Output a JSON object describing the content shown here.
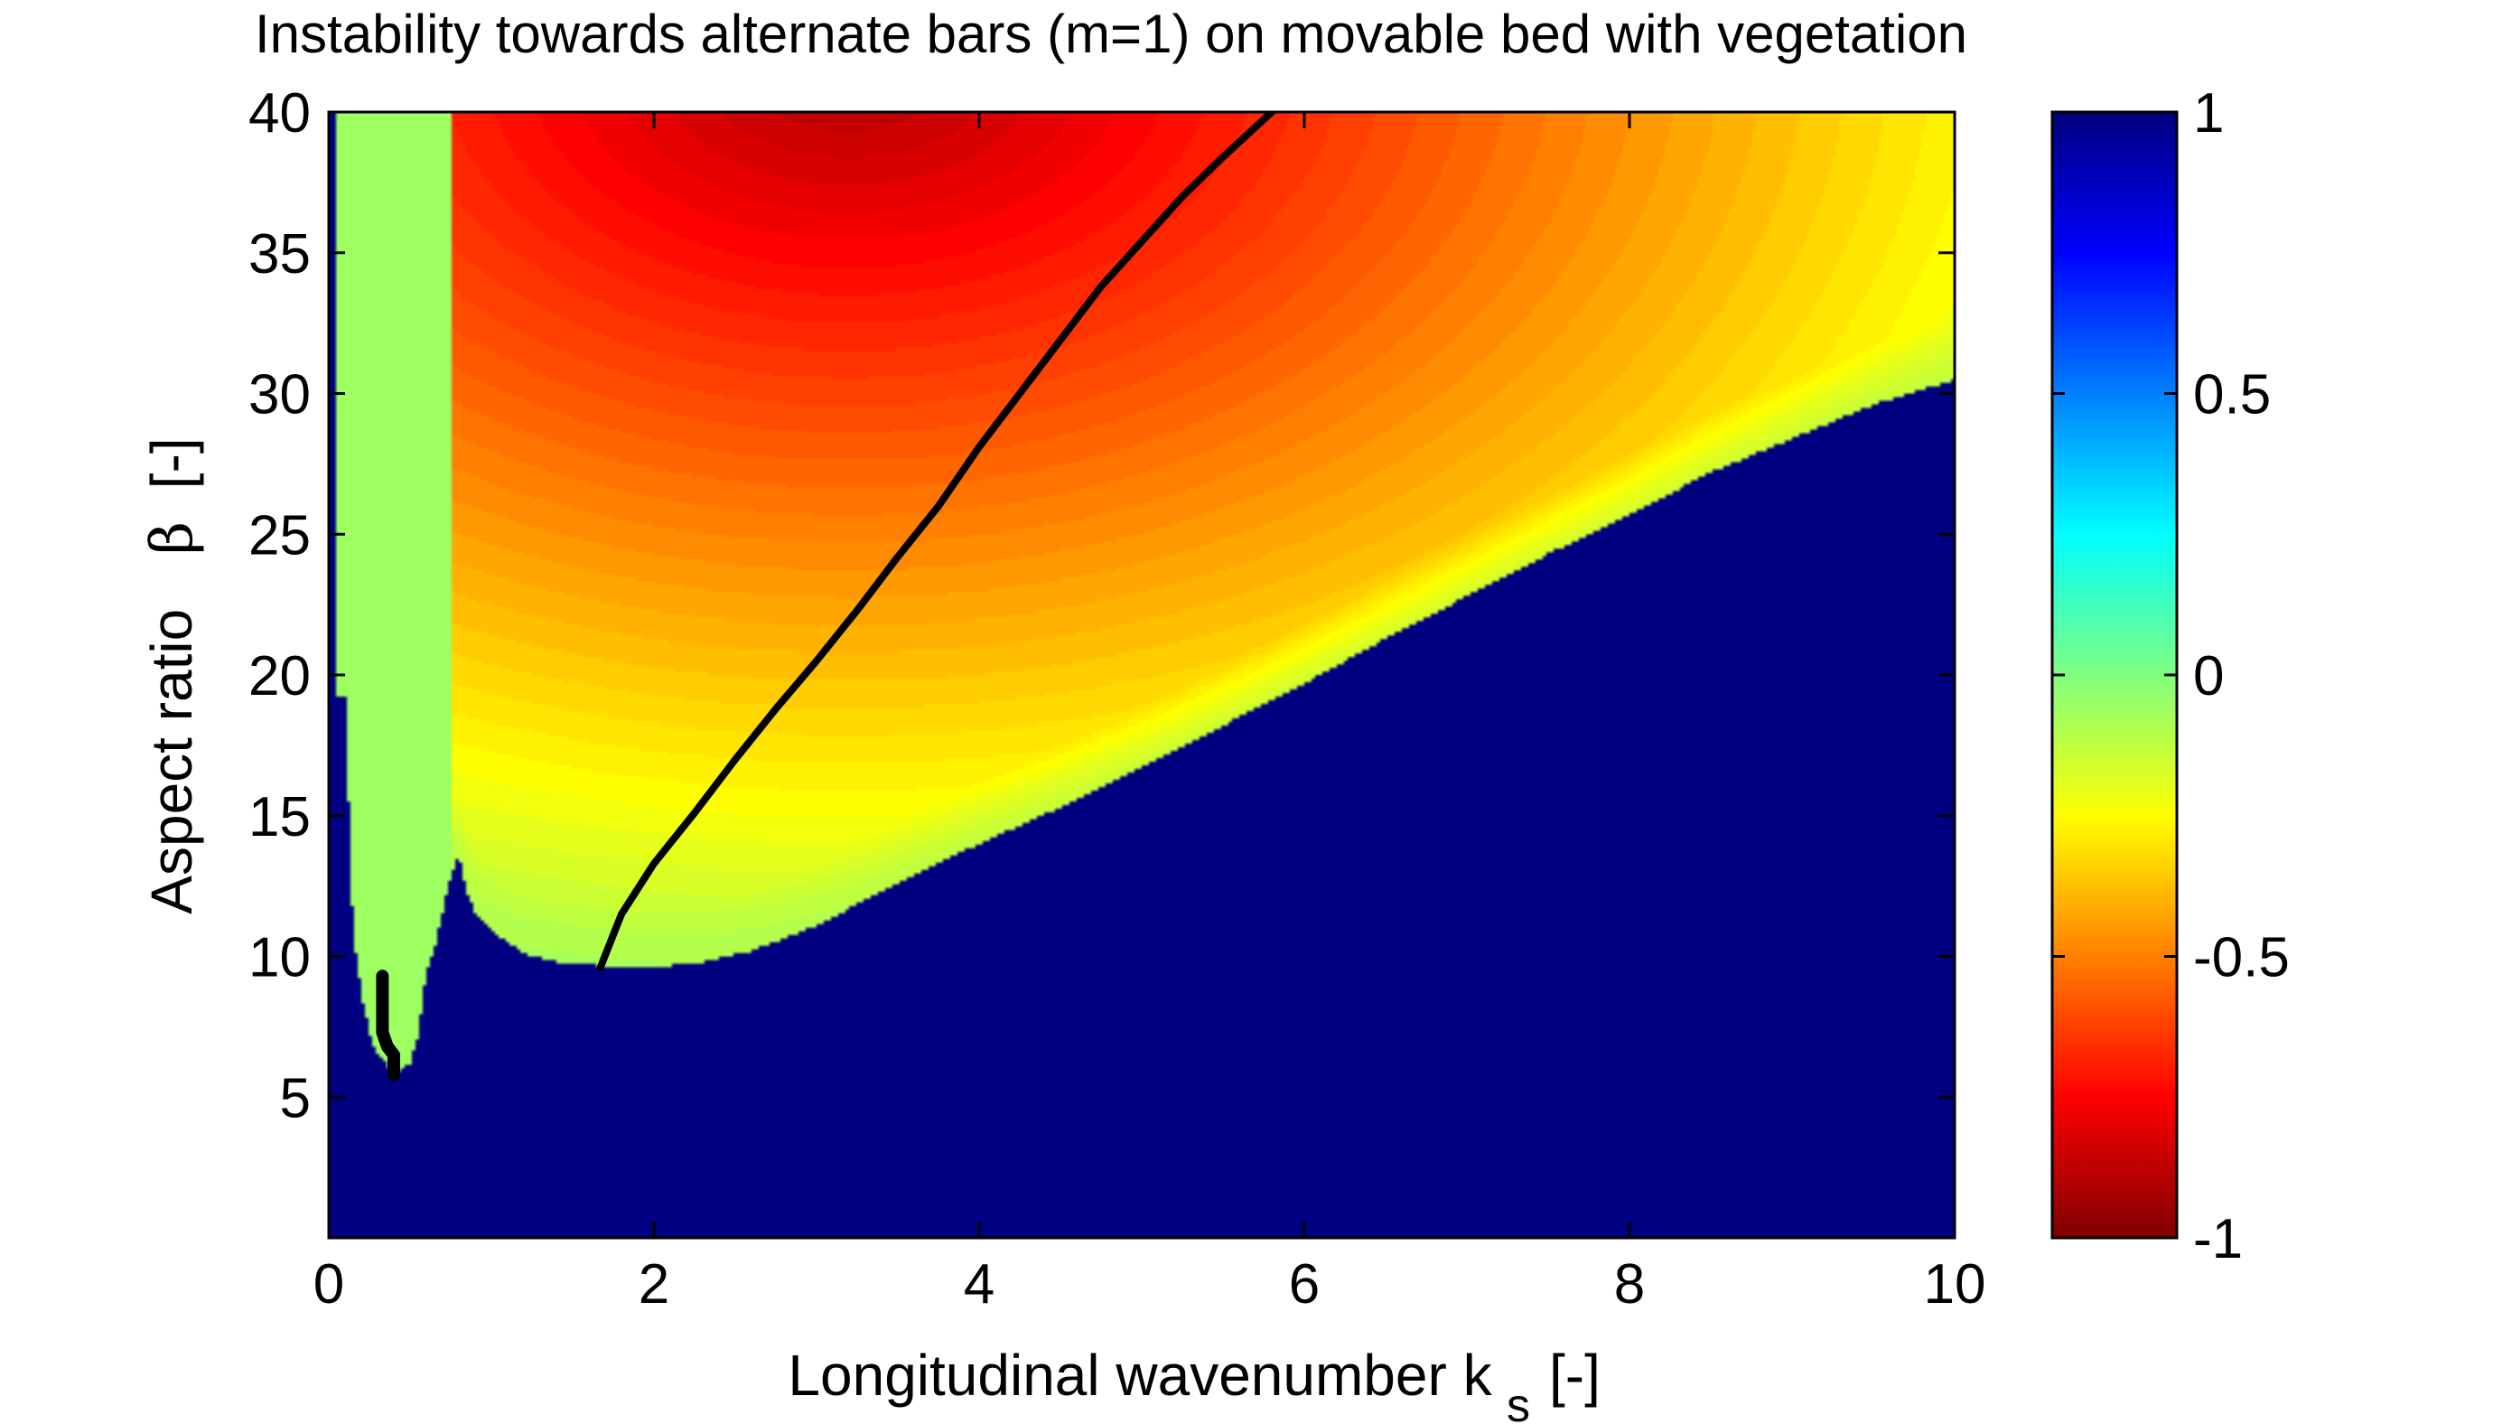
{
  "chart_data": {
    "type": "heatmap",
    "title": "Instability towards alternate bars (m=1) on movable bed with vegetation",
    "xlabel": {
      "text": "Longitudinal wavenumber  k",
      "subscript": "s",
      "unit": "[-]"
    },
    "ylabel": {
      "text": "Aspect ratio",
      "symbol": "β",
      "unit": "[-]"
    },
    "xlim": [
      0,
      10
    ],
    "ylim": [
      0,
      40
    ],
    "xticks": [
      "0",
      "2",
      "4",
      "6",
      "8",
      "10"
    ],
    "yticks": [
      "5",
      "10",
      "15",
      "20",
      "25",
      "30",
      "35",
      "40"
    ],
    "colorbar": {
      "ticks": [
        "-1",
        "-0.5",
        "0",
        "0.5",
        "1"
      ],
      "range": [
        -1,
        1
      ],
      "colormap": "jet"
    },
    "grid": false,
    "stable_region_value": -1,
    "neutral_boundary": {
      "x": [
        0.05,
        0.1,
        0.15,
        0.2,
        0.25,
        0.3,
        0.35,
        0.4,
        0.45,
        0.5,
        0.55,
        0.6,
        0.65,
        0.7,
        0.75,
        0.8,
        0.85,
        0.9,
        1.0,
        1.2,
        1.4,
        1.6,
        1.8,
        2.0,
        2.3,
        2.6,
        3.0,
        3.5,
        4.0,
        4.5,
        5.0,
        5.5,
        6.0,
        6.5,
        7.0,
        7.5,
        8.0,
        8.5,
        9.0,
        9.5,
        10.0
      ],
      "y": [
        19.3,
        19.2,
        10.8,
        8.7,
        7.3,
        6.5,
        6.2,
        5.8,
        6.0,
        6.2,
        7.2,
        9.5,
        10.3,
        11.6,
        12.9,
        13.6,
        12.2,
        11.6,
        10.9,
        10.1,
        9.8,
        9.7,
        9.6,
        9.6,
        9.8,
        10.2,
        11.1,
        12.6,
        14.0,
        15.3,
        16.7,
        18.2,
        19.7,
        21.3,
        22.8,
        24.3,
        25.7,
        27.2,
        28.4,
        29.6,
        30.5
      ]
    },
    "max_growth_curve": [
      {
        "x": [
          0.33,
          0.33,
          0.36,
          0.4,
          0.4
        ],
        "y": [
          9.3,
          7.3,
          6.8,
          6.5,
          5.8
        ]
      },
      {
        "x": [
          1.67,
          1.8,
          2.0,
          2.25,
          2.5,
          2.75,
          3.0,
          3.25,
          3.5,
          3.75,
          4.0,
          4.25,
          4.5,
          4.75,
          5.0,
          5.25,
          5.5,
          5.8
        ],
        "y": [
          9.6,
          11.5,
          13.3,
          15.1,
          17.0,
          18.8,
          20.5,
          22.3,
          24.2,
          26.0,
          28.1,
          30.0,
          31.9,
          33.8,
          35.4,
          37.0,
          38.4,
          40.0
        ]
      }
    ],
    "colors": {
      "stable": "#7f0000",
      "curve": "#000000",
      "near_zero": "#80ff80"
    }
  }
}
